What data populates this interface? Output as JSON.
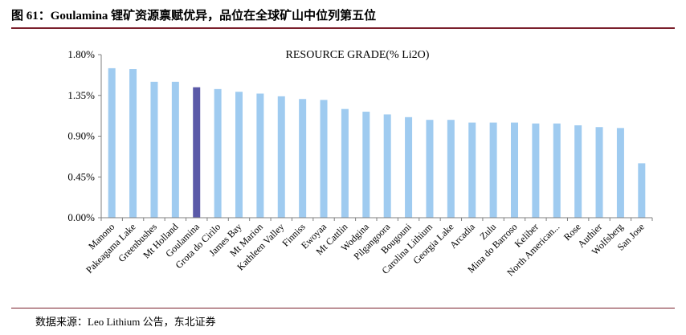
{
  "figure_title": "图 61：Goulamina 锂矿资源禀赋优异，品位在全球矿山中位列第五位",
  "source": "数据来源：Leo Lithium 公告，东北证券",
  "colors": {
    "bar": "#9fcbf0",
    "highlight": "#5b5aa8",
    "rule": "#7a1f2b",
    "axis": "#7f7f7f"
  },
  "chart_data": {
    "type": "bar",
    "title": "RESOURCE GRADE(% Li2O)",
    "xlabel": "",
    "ylabel": "",
    "ylim": [
      0,
      1.8
    ],
    "yticks": [
      "0.00%",
      "0.45%",
      "0.90%",
      "1.35%",
      "1.80%"
    ],
    "ytick_values": [
      0,
      0.45,
      0.9,
      1.35,
      1.8
    ],
    "highlight_category": "Goulamina",
    "categories": [
      "Manono",
      "Pakeagama Lake",
      "Greenbushes",
      "Mt Holland",
      "Goulamina",
      "Grota do Cirilo",
      "James Bay",
      "Mt Marion",
      "Kathleen Valley",
      "Finniss",
      "Ewoyaa",
      "Mt Cattlin",
      "Wodgina",
      "Pilgangoora",
      "Bougouni",
      "Carolina Lithium",
      "Georgia Lake",
      "Arcadia",
      "Zulu",
      "Mina do Barroso",
      "Keliber",
      "North American...",
      "Rose",
      "Authier",
      "Wolfsberg",
      "San Jose"
    ],
    "values": [
      1.65,
      1.64,
      1.5,
      1.5,
      1.44,
      1.42,
      1.39,
      1.37,
      1.34,
      1.31,
      1.3,
      1.2,
      1.17,
      1.14,
      1.11,
      1.08,
      1.08,
      1.05,
      1.05,
      1.05,
      1.04,
      1.04,
      1.02,
      1.0,
      0.99,
      0.6
    ],
    "grid": false,
    "legend": "none"
  }
}
